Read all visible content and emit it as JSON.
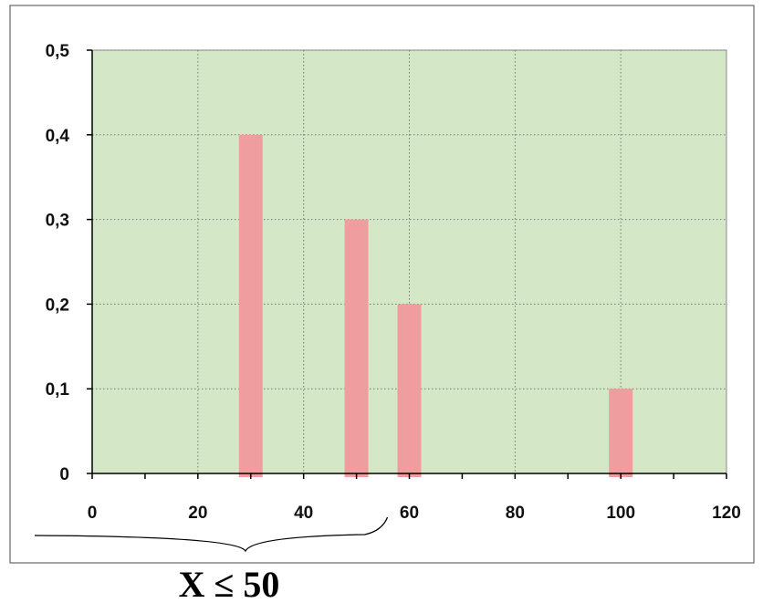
{
  "chart_data": {
    "type": "bar",
    "title": "",
    "xlabel": "",
    "ylabel": "",
    "x": [
      30,
      50,
      60,
      100
    ],
    "values": [
      0.4,
      0.3,
      0.2,
      0.1
    ],
    "xlim": [
      0,
      120
    ],
    "ylim": [
      0,
      0.5
    ],
    "x_ticks": [
      0,
      20,
      40,
      60,
      80,
      100,
      120
    ],
    "y_ticks": [
      0,
      0.1,
      0.2,
      0.3,
      0.4,
      0.5
    ],
    "x_tick_labels": [
      "0",
      "20",
      "40",
      "60",
      "80",
      "100",
      "120"
    ],
    "y_tick_labels": [
      "0",
      "0,1",
      "0,2",
      "0,3",
      "0,4",
      "0,5"
    ],
    "grid": true,
    "legend": "none",
    "annotation": {
      "text": "X ≤ 50",
      "x_range": [
        0,
        55
      ]
    },
    "colors": {
      "plot_background": "#d4e8c8",
      "bar": "#f09da0",
      "grid": "#777777",
      "axis": "#000000",
      "frame": "#666666"
    }
  }
}
